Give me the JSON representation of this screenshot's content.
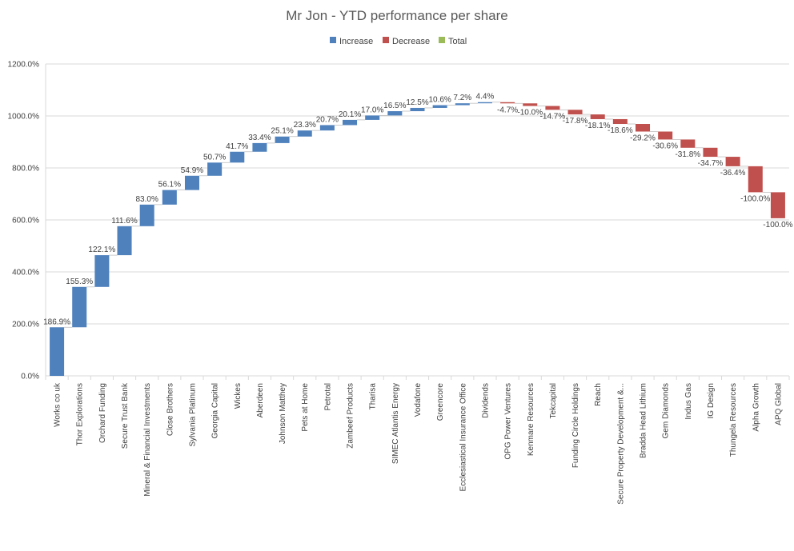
{
  "chart_data": {
    "type": "waterfall",
    "title": "Mr Jon - YTD performance per share",
    "legend": {
      "position": "top",
      "items": [
        {
          "label": "Increase",
          "color": "#4f81bd"
        },
        {
          "label": "Decrease",
          "color": "#c0504d"
        },
        {
          "label": "Total",
          "color": "#9bbb59"
        }
      ]
    },
    "y_axis": {
      "min": 0,
      "max": 1200,
      "step": 200,
      "tick_labels": [
        "0.0%",
        "200.0%",
        "400.0%",
        "600.0%",
        "800.0%",
        "1000.0%",
        "1200.0%"
      ],
      "gridlines": true
    },
    "categories": [
      "Works co uk",
      "Thor Explorations",
      "Orchard Funding",
      "Secure Trust Bank",
      "Mineral & Financial Investments",
      "Close Brothers",
      "Sylvania Platinum",
      "Georgia Capital",
      "Wickes",
      "Aberdeen",
      "Johnson Matthey",
      "Pets at Home",
      "Petrotal",
      "Zambeef Products",
      "Tharisa",
      "SIMEC Atlantis Energy",
      "Vodafone",
      "Greencore",
      "Ecclesiastical Insurance Office",
      "Dividends",
      "OPG Power Ventures",
      "Kenmare Resources",
      "Tekcapital",
      "Funding Circle Holdings",
      "Reach",
      "Secure Property Development &...",
      "Bradda Head Lithium",
      "Gem Diamonds",
      "Indus Gas",
      "IG Design",
      "Thungela Resources",
      "Alpha Growth",
      "APQ Global"
    ],
    "values": [
      186.9,
      155.3,
      122.1,
      111.6,
      83.0,
      56.1,
      54.9,
      50.7,
      41.7,
      33.4,
      25.1,
      23.3,
      20.7,
      20.1,
      17.0,
      16.5,
      12.5,
      10.6,
      7.2,
      4.4,
      -4.7,
      -10.0,
      -14.7,
      -17.8,
      -18.1,
      -18.6,
      -29.2,
      -30.6,
      -31.8,
      -34.7,
      -36.4,
      -100.0,
      -100.0
    ],
    "data_labels": [
      "186.9%",
      "155.3%",
      "122.1%",
      "111.6%",
      "83.0%",
      "56.1%",
      "54.9%",
      "50.7%",
      "41.7%",
      "33.4%",
      "25.1%",
      "23.3%",
      "20.7%",
      "20.1%",
      "17.0%",
      "16.5%",
      "12.5%",
      "10.6%",
      "7.2%",
      "4.4%",
      "-4.7%",
      "-10.0%",
      "-14.7%",
      "-17.8%",
      "-18.1%",
      "-18.6%",
      "-29.2%",
      "-30.6%",
      "-31.8%",
      "-34.7%",
      "-36.4%",
      "-100.0%",
      "-100.0%"
    ]
  }
}
